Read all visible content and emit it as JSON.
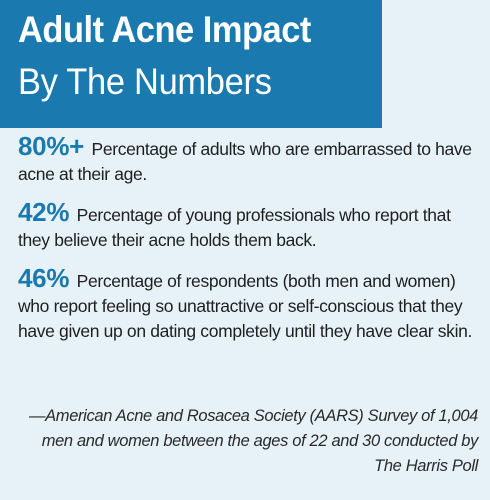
{
  "header": {
    "title_line_1": "Adult Acne Impact",
    "title_line_2": "By The Numbers",
    "background_color": "#1a7ab0"
  },
  "stats": [
    {
      "value": "80%+",
      "text": "Percentage of adults who are embarrassed to have acne at their age."
    },
    {
      "value": "42%",
      "text": "Percentage of young professionals who report that they believe their acne holds them back."
    },
    {
      "value": "46%",
      "text": "Percentage of respondents (both men and women) who report feeling so unattractive or self-conscious that they have given up on dating completely until they have clear skin."
    }
  ],
  "source": "—American Acne and Rosacea Society (AARS) Survey of 1,004 men and women between the ages of 22 and 30 conducted by The Harris Poll",
  "colors": {
    "accent": "#1a7ab0",
    "page_background": "#e6f2f7",
    "body_text": "#1f1f1f"
  }
}
